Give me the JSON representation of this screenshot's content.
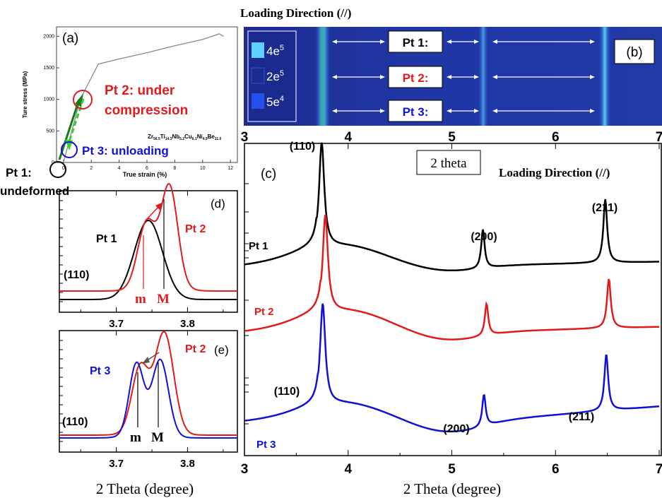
{
  "colors": {
    "pt1": "#000000",
    "pt2": "#e31a1c",
    "pt3": "#1010d8",
    "green": "#1a7a1a",
    "lightgreen": "#33cc33",
    "heat_dark": "#1b2a8f",
    "heat_mid": "#2550d8",
    "heat_bright": "#5fd0ff"
  },
  "header": {
    "loading_direction": "Loading Direction (//)",
    "loading_direction_c": "Loading Direction (//)",
    "two_theta_box": "2 theta",
    "xaxis_bottom_right": "2 Theta (degree)",
    "xaxis_bottom_left": "2 Theta (degree)"
  },
  "panel_a": {
    "label": "(a)",
    "pt2_text_1": "Pt 2: under",
    "pt2_text_2": "compression",
    "pt3_text": "Pt 3: unloading",
    "pt1_text_1": "Pt 1:",
    "pt1_text_2": "undeformed",
    "composition": "Zr56.5Ti14.3Nb5.2Cu6.1Ni4.9Be11.0"
  },
  "panel_b": {
    "label": "(b)",
    "legend": [
      "4e5",
      "2e5",
      "5e4"
    ],
    "rows": [
      "Pt 1:",
      "Pt 2:",
      "Pt 3:"
    ]
  },
  "panel_c": {
    "label": "(c)",
    "curve_labels": [
      "Pt 1",
      "Pt 2",
      "Pt 3"
    ],
    "peak_labels_top": [
      "(110)",
      "(200)",
      "(211)"
    ],
    "peak_labels_bottom": [
      "(110)",
      "(200)",
      "(211)"
    ]
  },
  "panel_d": {
    "label": "(d)",
    "pt1": "Pt 1",
    "pt2": "Pt 2",
    "hkl": "(110)",
    "m": "m",
    "M": "M"
  },
  "panel_e": {
    "label": "(e)",
    "pt3": "Pt 3",
    "pt2": "Pt 2",
    "hkl": "(110)",
    "m": "m",
    "M": "M"
  },
  "chart_data": [
    {
      "type": "line",
      "panel": "a",
      "xlabel": "True strain (%)",
      "ylabel": "Ture stress (MPa)",
      "x_ticks": [
        0,
        2,
        4,
        6,
        8,
        10,
        12
      ],
      "y_ticks": [
        0,
        500,
        1000,
        1500,
        2000
      ],
      "xlim": [
        -0.5,
        12.5
      ],
      "ylim": [
        0,
        2150
      ],
      "series": [
        {
          "values": [
            [
              0,
              0
            ],
            [
              1.2,
              1000
            ],
            [
              2.5,
              1560
            ],
            [
              4,
              1640
            ],
            [
              6,
              1740
            ],
            [
              8,
              1850
            ],
            [
              10,
              1950
            ],
            [
              11.2,
              2040
            ],
            [
              11.5,
              2000
            ]
          ]
        }
      ]
    },
    {
      "type": "heatmap",
      "panel": "b",
      "legend": [
        "4e5",
        "2e5",
        "5e4"
      ],
      "x_ticks": [
        3,
        4,
        5,
        6,
        7
      ],
      "xlim": [
        3,
        7
      ]
    },
    {
      "type": "line",
      "panel": "c",
      "xlabel": "2 Theta (degree)",
      "x_ticks": [
        3,
        4,
        5,
        6,
        7
      ],
      "xlim": [
        3,
        7
      ],
      "series": [
        {
          "name": "Pt 1",
          "peaks": [
            {
              "x": 3.75,
              "label": "(110)"
            },
            {
              "x": 5.3,
              "label": "(200)"
            },
            {
              "x": 6.48,
              "label": "(211)"
            }
          ]
        },
        {
          "name": "Pt 2",
          "peaks": [
            {
              "x": 3.78
            },
            {
              "x": 5.34
            },
            {
              "x": 6.52
            }
          ]
        },
        {
          "name": "Pt 3",
          "peaks": [
            {
              "x": 3.74,
              "label": "(110)"
            },
            {
              "x": 5.32,
              "label": "(200)"
            },
            {
              "x": 6.5,
              "label": "(211)"
            }
          ]
        }
      ]
    },
    {
      "type": "line",
      "panel": "d",
      "x_ticks": [
        3.7,
        3.8
      ],
      "xlim": [
        3.62,
        3.87
      ],
      "series": [
        {
          "name": "Pt 1"
        },
        {
          "name": "Pt 2"
        }
      ]
    },
    {
      "type": "line",
      "panel": "e",
      "xlabel": "2 Theta (degree)",
      "x_ticks": [
        3.7,
        3.8
      ],
      "xlim": [
        3.62,
        3.87
      ],
      "series": [
        {
          "name": "Pt 3"
        },
        {
          "name": "Pt 2"
        }
      ]
    }
  ]
}
